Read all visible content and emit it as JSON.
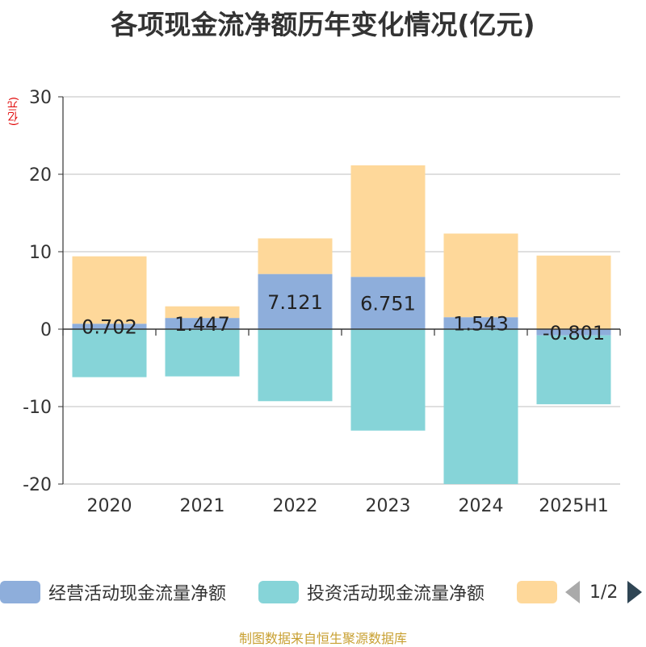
{
  "chart_data": {
    "type": "bar",
    "stacked": true,
    "title": "各项现金流净额历年变化情况(亿元)",
    "unit_label": "(亿元)",
    "categories": [
      "2020",
      "2021",
      "2022",
      "2023",
      "2024",
      "2025H1"
    ],
    "ylim": [
      -20,
      30
    ],
    "yticks": [
      30,
      20,
      10,
      0,
      -10,
      -20
    ],
    "grid": true,
    "legend_position": "bottom",
    "series": [
      {
        "name": "经营活动现金流量净额",
        "color": "#8eaedb",
        "values": [
          0.702,
          1.447,
          7.121,
          6.751,
          1.543,
          -0.801
        ],
        "labels": [
          "0.702",
          "1.447",
          "7.121",
          "6.751",
          "1.543",
          "-0.801"
        ]
      },
      {
        "name": "投资活动现金流量净额",
        "color": "#86d4d8",
        "values": [
          -6.2,
          -6.1,
          -9.3,
          -13.1,
          -20.0,
          -8.9
        ]
      },
      {
        "name": "",
        "color": "#fed89a",
        "values": [
          8.7,
          1.5,
          4.6,
          14.4,
          10.8,
          9.5
        ]
      }
    ]
  },
  "legend": {
    "pager": "1/2"
  },
  "source": "制图数据来自恒生聚源数据库"
}
